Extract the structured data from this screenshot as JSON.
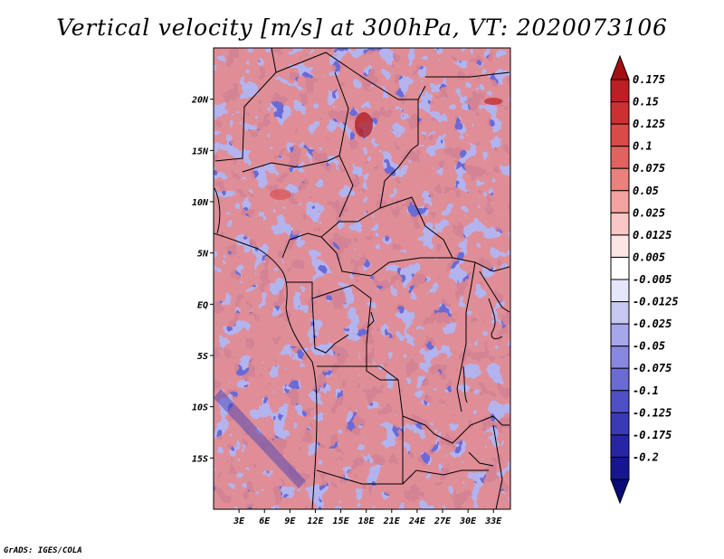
{
  "figure": {
    "title": "Vertical velocity [m/s] at 300hPa, VT: 2020073106",
    "footer": "GrADS: IGES/COLA"
  },
  "map": {
    "variable": "Vertical velocity",
    "units": "m/s",
    "level": "300hPa",
    "valid_time": "2020073106",
    "lon_range": [
      0,
      35
    ],
    "lat_range": [
      -20,
      25
    ],
    "lon_ticks": [
      "3E",
      "6E",
      "9E",
      "12E",
      "15E",
      "18E",
      "21E",
      "24E",
      "27E",
      "30E",
      "33E"
    ],
    "lat_ticks": [
      "20N",
      "15N",
      "10N",
      "5N",
      "EQ",
      "5S",
      "10S",
      "15S"
    ]
  },
  "colorbar": {
    "levels": [
      "0.175",
      "0.15",
      "0.125",
      "0.1",
      "0.075",
      "0.05",
      "0.025",
      "0.0125",
      "0.005",
      "-0.005",
      "-0.0125",
      "-0.025",
      "-0.05",
      "-0.075",
      "-0.1",
      "-0.125",
      "-0.175",
      "-0.2"
    ],
    "colors": {
      "top": "#a40f14",
      "reds": [
        "#bd1f24",
        "#cc3033",
        "#d94a48",
        "#e2625f",
        "#ea817d",
        "#f2a3a0",
        "#f9c7c5",
        "#fde5e3"
      ],
      "white": "#ffffff",
      "blues": [
        "#e6e6fa",
        "#c7c7f2",
        "#a6a6ea",
        "#8888e0",
        "#6b6bd4",
        "#5050c5",
        "#3a3ab5",
        "#2626a4",
        "#16168f"
      ],
      "bottom": "#0a0a78"
    }
  }
}
